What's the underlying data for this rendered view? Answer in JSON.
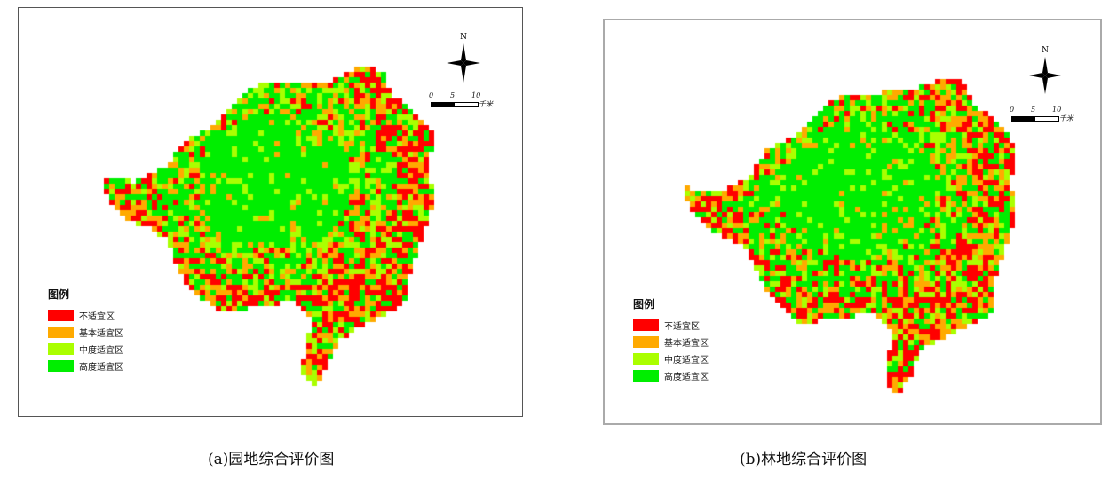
{
  "panels": [
    {
      "legend_title": "图例",
      "legend_items": [
        {
          "label": "不适宜区",
          "color": "#ff0000"
        },
        {
          "label": "基本适宜区",
          "color": "#ffaa00"
        },
        {
          "label": "中度适宜区",
          "color": "#aaff00"
        },
        {
          "label": "高度适宜区",
          "color": "#00ee00"
        }
      ],
      "north_label": "N",
      "scale_ticks": [
        "0",
        "5",
        "10"
      ],
      "scale_unit": "千米",
      "caption": "(a)园地综合评价图"
    },
    {
      "legend_title": "图例",
      "legend_items": [
        {
          "label": "不适宜区",
          "color": "#ff0000"
        },
        {
          "label": "基本适宜区",
          "color": "#ffaa00"
        },
        {
          "label": "中度适宜区",
          "color": "#aaff00"
        },
        {
          "label": "高度适宜区",
          "color": "#00ee00"
        }
      ],
      "north_label": "N",
      "scale_ticks": [
        "0",
        "5",
        "10"
      ],
      "scale_unit": "千米",
      "caption": "(b)林地综合评价图"
    }
  ]
}
